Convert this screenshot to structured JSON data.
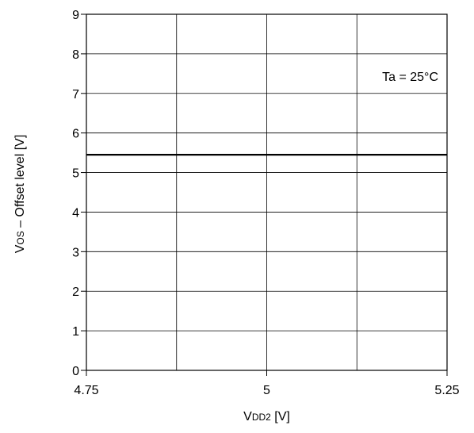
{
  "chart_data": {
    "type": "line",
    "x_axis": {
      "label_main": "V",
      "label_sub": "DD2",
      "label_unit": " [V]",
      "range": [
        4.75,
        5.25
      ],
      "ticks": [
        4.75,
        5,
        5.25
      ],
      "tick_labels": [
        "4.75",
        "5",
        "5.25"
      ],
      "minor_gridlines": [
        4.875,
        5.125
      ]
    },
    "y_axis": {
      "label_main": "V",
      "label_sub": "OS",
      "label_unit": " – Offset level [V]",
      "range": [
        0,
        9
      ],
      "ticks": [
        0,
        1,
        2,
        3,
        4,
        5,
        6,
        7,
        8,
        9
      ],
      "tick_labels": [
        "0",
        "1",
        "2",
        "3",
        "4",
        "5",
        "6",
        "7",
        "8",
        "9"
      ]
    },
    "grid": true,
    "annotation": "Ta = 25°C",
    "series": [
      {
        "x": [
          4.75,
          5.25
        ],
        "y": [
          5.45,
          5.45
        ]
      }
    ],
    "colors": {
      "line": "#000000",
      "grid": "#000000",
      "background": "#ffffff"
    }
  }
}
